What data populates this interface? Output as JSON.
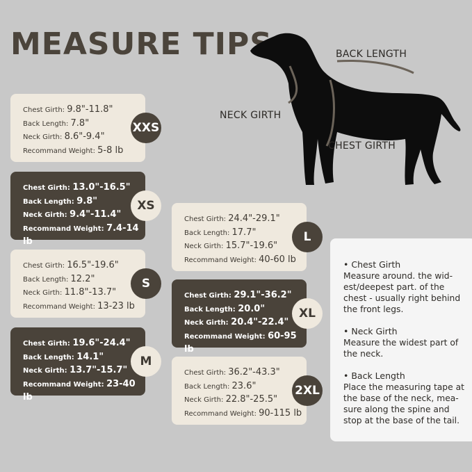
{
  "title": "MEASURE TIPS",
  "labels": {
    "chest_girth": "Chest Girth:",
    "back_length": "Back Length:",
    "neck_girth": "Neck Girth:",
    "weight": "Recommand Weight:"
  },
  "diagram": {
    "back_length": "BACK LENGTH",
    "neck_girth": "NECK GIRTH",
    "chest_girth": "CHEST GIRTH"
  },
  "sizes": [
    {
      "size": "XXS",
      "chest": "9.8\"-11.8\"",
      "back": "7.8\"",
      "neck": "8.6\"-9.4\"",
      "weight": "5-8 lb"
    },
    {
      "size": "XS",
      "chest": "13.0\"-16.5\"",
      "back": "9.8\"",
      "neck": " 9.4\"-11.4\"",
      "weight": "7.4-14 lb"
    },
    {
      "size": "S",
      "chest": "16.5\"-19.6\"",
      "back": "12.2\"",
      "neck": "11.8\"-13.7\"",
      "weight": "13-23 lb"
    },
    {
      "size": "M",
      "chest": "19.6\"-24.4\"",
      "back": "14.1\"",
      "neck": "13.7\"-15.7\"",
      "weight": "23-40 lb"
    },
    {
      "size": "L",
      "chest": "24.4\"-29.1\"",
      "back": "17.7\"",
      "neck": "15.7\"-19.6\"",
      "weight": "40-60 lb"
    },
    {
      "size": "XL",
      "chest": "29.1\"-36.2\"",
      "back": "20.0\"",
      "neck": "20.4\"-22.4\"",
      "weight": "60-95 lb"
    },
    {
      "size": "2XL",
      "chest": "36.2\"-43.3\"",
      "back": "23.6\"",
      "neck": "22.8\"-25.5\"",
      "weight": "90-115 lb"
    }
  ],
  "tips": [
    {
      "heading": "• Chest Girth",
      "text": "Measure around. the wid-est/deepest part. of the chest - usually right behind the front legs."
    },
    {
      "heading": "• Neck Girth",
      "text": "Measure the widest part of the neck."
    },
    {
      "heading": "• Back Length",
      "text": "Place the measuring tape at the base of the neck, mea-sure along the spine and stop at the base of the tail."
    }
  ],
  "colors": {
    "background": "#c8c8c8",
    "dark": "#4a433a",
    "light": "#efe9de"
  }
}
